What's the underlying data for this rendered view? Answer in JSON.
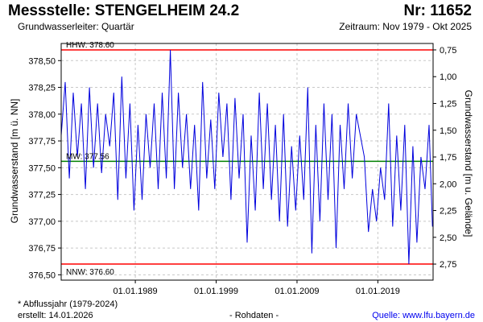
{
  "header": {
    "title": "Messstelle: STENGELHEIM 24.2",
    "number": "Nr: 11652",
    "aquifer": "Grundwasserleiter: Quartär",
    "period": "Zeitraum: Nov 1979 - Okt 2025"
  },
  "footer": {
    "note": "* Abflussjahr (1979-2024)",
    "created": "erstellt:  14.01.2026",
    "raw": "- Rohdaten -",
    "source": "Quelle: www.lfu.bayern.de"
  },
  "colors": {
    "series": "#0000dd",
    "hhw": "#ff0000",
    "nnw": "#ff0000",
    "mw": "#008000",
    "grid": "#c8c8c8"
  },
  "chart_data": {
    "type": "line",
    "ylabel": "Grundwasserstand [m ü. NN]",
    "ylabel_right": "Grundwasserstand [m u. Gelände]",
    "x_range": [
      "1979-11-01",
      "2025-10-31"
    ],
    "ylim": [
      376.45,
      378.66
    ],
    "y_ticks": [
      "376,50",
      "376,75",
      "377,00",
      "377,25",
      "377,50",
      "377,75",
      "378,00",
      "378,25",
      "378,50"
    ],
    "y_tick_values": [
      376.5,
      376.75,
      377.0,
      377.25,
      377.5,
      377.75,
      378.0,
      378.25,
      378.5
    ],
    "y2_ticks": [
      "0,75",
      "1,00",
      "1,25",
      "1,50",
      "1,75",
      "2,00",
      "2,25",
      "2,50",
      "2,75"
    ],
    "y2_tick_values": [
      0.75,
      1.0,
      1.25,
      1.5,
      1.75,
      2.0,
      2.25,
      2.5,
      2.75
    ],
    "ground_level": 379.35,
    "x_ticks": [
      "01.01.1989",
      "01.01.1999",
      "01.01.2009",
      "01.01.2019"
    ],
    "x_tick_dates": [
      "1989-01-01",
      "1999-01-01",
      "2009-01-01",
      "2019-01-01"
    ],
    "grid": true,
    "reference_lines": [
      {
        "label": "HHW: 378.60",
        "value": 378.6
      },
      {
        "label": "MW: 377.56",
        "value": 377.56
      },
      {
        "label": "NNW: 376.60",
        "value": 376.6
      }
    ],
    "series": [
      {
        "x": [
          "1979-11",
          "1980-05",
          "1980-11",
          "1981-05",
          "1981-11",
          "1982-05",
          "1982-11",
          "1983-05",
          "1983-11",
          "1984-05",
          "1984-11",
          "1985-05",
          "1985-11",
          "1986-05",
          "1986-11",
          "1987-05",
          "1987-11",
          "1988-05",
          "1988-11",
          "1989-05",
          "1989-11",
          "1990-05",
          "1990-11",
          "1991-05",
          "1991-11",
          "1992-05",
          "1992-11",
          "1993-05",
          "1993-11",
          "1994-05",
          "1994-11",
          "1995-05",
          "1995-11",
          "1996-05",
          "1996-11",
          "1997-05",
          "1997-11",
          "1998-05",
          "1998-11",
          "1999-05",
          "1999-11",
          "2000-05",
          "2000-11",
          "2001-05",
          "2001-11",
          "2002-05",
          "2002-11",
          "2003-05",
          "2003-11",
          "2004-05",
          "2004-11",
          "2005-05",
          "2005-11",
          "2006-05",
          "2006-11",
          "2007-05",
          "2007-11",
          "2008-05",
          "2008-11",
          "2009-05",
          "2009-11",
          "2010-05",
          "2010-11",
          "2011-05",
          "2011-11",
          "2012-05",
          "2012-11",
          "2013-05",
          "2013-11",
          "2014-05",
          "2014-11",
          "2015-05",
          "2015-11",
          "2016-05",
          "2016-11",
          "2017-05",
          "2017-11",
          "2018-05",
          "2018-11",
          "2019-05",
          "2019-11",
          "2020-05",
          "2020-11",
          "2021-05",
          "2021-11",
          "2022-05",
          "2022-11",
          "2023-05",
          "2023-11",
          "2024-05",
          "2024-11",
          "2025-05",
          "2025-10"
        ],
        "values": [
          377.8,
          378.3,
          377.4,
          378.2,
          377.6,
          378.1,
          377.3,
          378.25,
          377.5,
          378.1,
          377.45,
          378.0,
          377.7,
          378.2,
          377.2,
          378.35,
          377.4,
          378.1,
          377.1,
          377.9,
          377.2,
          378.0,
          377.5,
          378.1,
          377.3,
          378.2,
          377.4,
          378.6,
          377.3,
          378.2,
          377.5,
          378.0,
          377.3,
          377.9,
          377.1,
          378.3,
          377.4,
          377.95,
          377.3,
          378.2,
          377.6,
          378.1,
          377.2,
          378.15,
          377.4,
          378.0,
          376.8,
          377.8,
          377.1,
          378.2,
          377.3,
          378.1,
          377.2,
          377.9,
          377.0,
          378.0,
          376.95,
          377.7,
          377.1,
          377.8,
          377.2,
          378.25,
          376.7,
          377.9,
          377.0,
          378.1,
          377.2,
          378.0,
          376.75,
          377.9,
          377.3,
          378.1,
          377.4,
          378.0,
          377.8,
          377.6,
          376.9,
          377.3,
          377.0,
          377.5,
          377.2,
          378.1,
          376.95,
          377.8,
          377.1,
          377.9,
          376.6,
          377.7,
          376.8,
          377.6,
          377.3,
          377.9,
          376.95
        ]
      }
    ]
  }
}
